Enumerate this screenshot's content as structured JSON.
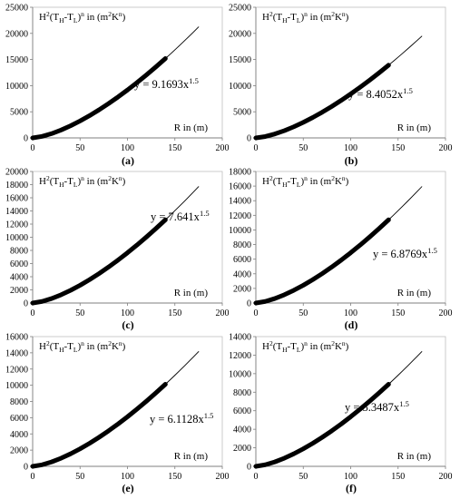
{
  "chart_data": [
    {
      "type": "line",
      "panel_label": "(a)",
      "ylabel_parts": [
        "H",
        "2",
        "(T",
        "H",
        "-T",
        "L",
        ")",
        "n",
        "  in  (m",
        "2",
        "K",
        "n",
        ")"
      ],
      "xlabel": "R in (m)",
      "equation": {
        "prefix": "y = 9.1693x",
        "exponent": "1.5"
      },
      "coefficient": 9.1693,
      "exponent": 1.5,
      "xlim": [
        0,
        200
      ],
      "ylim": [
        0,
        25000
      ],
      "xticks": [
        0,
        50,
        100,
        150,
        200
      ],
      "yticks": [
        0,
        5000,
        10000,
        15000,
        20000,
        25000
      ],
      "series": [
        {
          "style": "thick",
          "x": [
            0,
            10,
            20,
            30,
            40,
            50,
            60,
            70,
            80,
            90,
            100,
            110,
            120,
            130,
            140
          ],
          "y": [
            0,
            290,
            820,
            1507,
            2320,
            3242,
            4262,
            5370,
            6562,
            7829,
            9169,
            10578,
            12053,
            13591,
            15189
          ]
        },
        {
          "style": "thin",
          "x": [
            140,
            145,
            150,
            155,
            160,
            165,
            170,
            175
          ],
          "y": [
            15189,
            16010,
            16845,
            17694,
            18557,
            19434,
            20324,
            21228
          ]
        }
      ]
    },
    {
      "type": "line",
      "panel_label": "(b)",
      "ylabel_parts": [
        "H",
        "2",
        "(T",
        "H",
        "-T",
        "L",
        ")",
        "n",
        "  in  (m",
        "2",
        "K",
        "n",
        ")"
      ],
      "xlabel": "R in (m)",
      "equation": {
        "prefix": "y = 8.4052x",
        "exponent": "1.5"
      },
      "coefficient": 8.4052,
      "exponent": 1.5,
      "xlim": [
        0,
        200
      ],
      "ylim": [
        0,
        25000
      ],
      "xticks": [
        0,
        50,
        100,
        150,
        200
      ],
      "yticks": [
        0,
        5000,
        10000,
        15000,
        20000,
        25000
      ],
      "series": [
        {
          "style": "thick",
          "x": [
            0,
            10,
            20,
            30,
            40,
            50,
            60,
            70,
            80,
            90,
            100,
            110,
            120,
            130,
            140
          ],
          "y": [
            0,
            266,
            752,
            1381,
            2126,
            2972,
            3906,
            4922,
            6015,
            7177,
            8405,
            9697,
            11049,
            12458,
            13923
          ]
        },
        {
          "style": "thin",
          "x": [
            140,
            145,
            150,
            155,
            160,
            165,
            170,
            175
          ],
          "y": [
            13923,
            14675,
            15440,
            16219,
            17011,
            17815,
            18631,
            19460
          ]
        }
      ]
    },
    {
      "type": "line",
      "panel_label": "(c)",
      "ylabel_parts": [
        "H",
        "2",
        "(T",
        "H",
        "-T",
        "L",
        ")",
        "n",
        "  in  (m",
        "2",
        "K",
        "n",
        ")"
      ],
      "xlabel": "R in (m)",
      "equation": {
        "prefix": "y = 7.641x",
        "exponent": "1.5"
      },
      "coefficient": 7.641,
      "exponent": 1.5,
      "xlim": [
        0,
        200
      ],
      "ylim": [
        0,
        20000
      ],
      "xticks": [
        0,
        50,
        100,
        150,
        200
      ],
      "yticks": [
        0,
        2000,
        4000,
        6000,
        8000,
        10000,
        12000,
        14000,
        16000,
        18000,
        20000
      ],
      "series": [
        {
          "style": "thick",
          "x": [
            0,
            10,
            20,
            30,
            40,
            50,
            60,
            70,
            80,
            90,
            100,
            110,
            120,
            130,
            140
          ],
          "y": [
            0,
            242,
            683,
            1256,
            1933,
            2702,
            3551,
            4475,
            5468,
            6524,
            7641,
            8815,
            10044,
            11326,
            12657
          ]
        },
        {
          "style": "thin",
          "x": [
            140,
            145,
            150,
            155,
            160,
            165,
            170,
            175
          ],
          "y": [
            12657,
            13341,
            14037,
            14745,
            15464,
            16195,
            16937,
            17691
          ]
        }
      ]
    },
    {
      "type": "line",
      "panel_label": "(d)",
      "ylabel_parts": [
        "H",
        "2",
        "(T",
        "H",
        "-T",
        "L",
        ")",
        "n",
        "  in  (m",
        "2",
        "K",
        "n",
        ")"
      ],
      "xlabel": "R in (m)",
      "equation": {
        "prefix": "y = 6.8769x",
        "exponent": "1.5"
      },
      "coefficient": 6.8769,
      "exponent": 1.5,
      "xlim": [
        0,
        200
      ],
      "ylim": [
        0,
        18000
      ],
      "xticks": [
        0,
        50,
        100,
        150,
        200
      ],
      "yticks": [
        0,
        2000,
        4000,
        6000,
        8000,
        10000,
        12000,
        14000,
        16000,
        18000
      ],
      "series": [
        {
          "style": "thick",
          "x": [
            0,
            10,
            20,
            30,
            40,
            50,
            60,
            70,
            80,
            90,
            100,
            110,
            120,
            130,
            140
          ],
          "y": [
            0,
            217,
            615,
            1130,
            1740,
            2431,
            3196,
            4028,
            4921,
            5872,
            6877,
            7934,
            9040,
            10193,
            11391
          ]
        },
        {
          "style": "thin",
          "x": [
            140,
            145,
            150,
            155,
            160,
            165,
            170,
            175
          ],
          "y": [
            11391,
            12008,
            12634,
            13271,
            13918,
            14576,
            15244,
            15921
          ]
        }
      ]
    },
    {
      "type": "line",
      "panel_label": "(e)",
      "ylabel_parts": [
        "H",
        "2",
        "(T",
        "H",
        "-T",
        "L",
        ")",
        "n",
        "  in  (m",
        "2",
        "K",
        "n",
        ")"
      ],
      "xlabel": "R in (m)",
      "equation": {
        "prefix": "y = 6.1128x",
        "exponent": "1.5"
      },
      "coefficient": 6.1128,
      "exponent": 1.5,
      "xlim": [
        0,
        200
      ],
      "ylim": [
        0,
        16000
      ],
      "xticks": [
        0,
        50,
        100,
        150,
        200
      ],
      "yticks": [
        0,
        2000,
        4000,
        6000,
        8000,
        10000,
        12000,
        14000,
        16000
      ],
      "series": [
        {
          "style": "thick",
          "x": [
            0,
            10,
            20,
            30,
            40,
            50,
            60,
            70,
            80,
            90,
            100,
            110,
            120,
            130,
            140
          ],
          "y": [
            0,
            193,
            547,
            1004,
            1546,
            2161,
            2841,
            3580,
            4374,
            5219,
            6113,
            7052,
            8035,
            9061,
            10126
          ]
        },
        {
          "style": "thin",
          "x": [
            140,
            145,
            150,
            155,
            160,
            165,
            170,
            175
          ],
          "y": [
            10126,
            10673,
            11230,
            11796,
            12372,
            12956,
            13550,
            14153
          ]
        }
      ]
    },
    {
      "type": "line",
      "panel_label": "(f)",
      "ylabel_parts": [
        "H",
        "2",
        "(T",
        "H",
        "-T",
        "L",
        ")",
        "n",
        "  in  (m",
        "2",
        "K",
        "n",
        ")"
      ],
      "xlabel": "R in (m)",
      "equation": {
        "prefix": "y = 5.3487x",
        "exponent": "1.5"
      },
      "coefficient": 5.3487,
      "exponent": 1.5,
      "xlim": [
        0,
        200
      ],
      "ylim": [
        0,
        14000
      ],
      "xticks": [
        0,
        50,
        100,
        150,
        200
      ],
      "yticks": [
        0,
        2000,
        4000,
        6000,
        8000,
        10000,
        12000,
        14000
      ],
      "series": [
        {
          "style": "thick",
          "x": [
            0,
            10,
            20,
            30,
            40,
            50,
            60,
            70,
            80,
            90,
            100,
            110,
            120,
            130,
            140
          ],
          "y": [
            0,
            169,
            478,
            879,
            1353,
            1891,
            2486,
            3133,
            3827,
            4567,
            5349,
            6171,
            7031,
            7928,
            8861
          ]
        },
        {
          "style": "thin",
          "x": [
            140,
            145,
            150,
            155,
            160,
            165,
            170,
            175
          ],
          "y": [
            8861,
            9339,
            9826,
            10322,
            10825,
            11337,
            11857,
            12384
          ]
        }
      ]
    }
  ]
}
